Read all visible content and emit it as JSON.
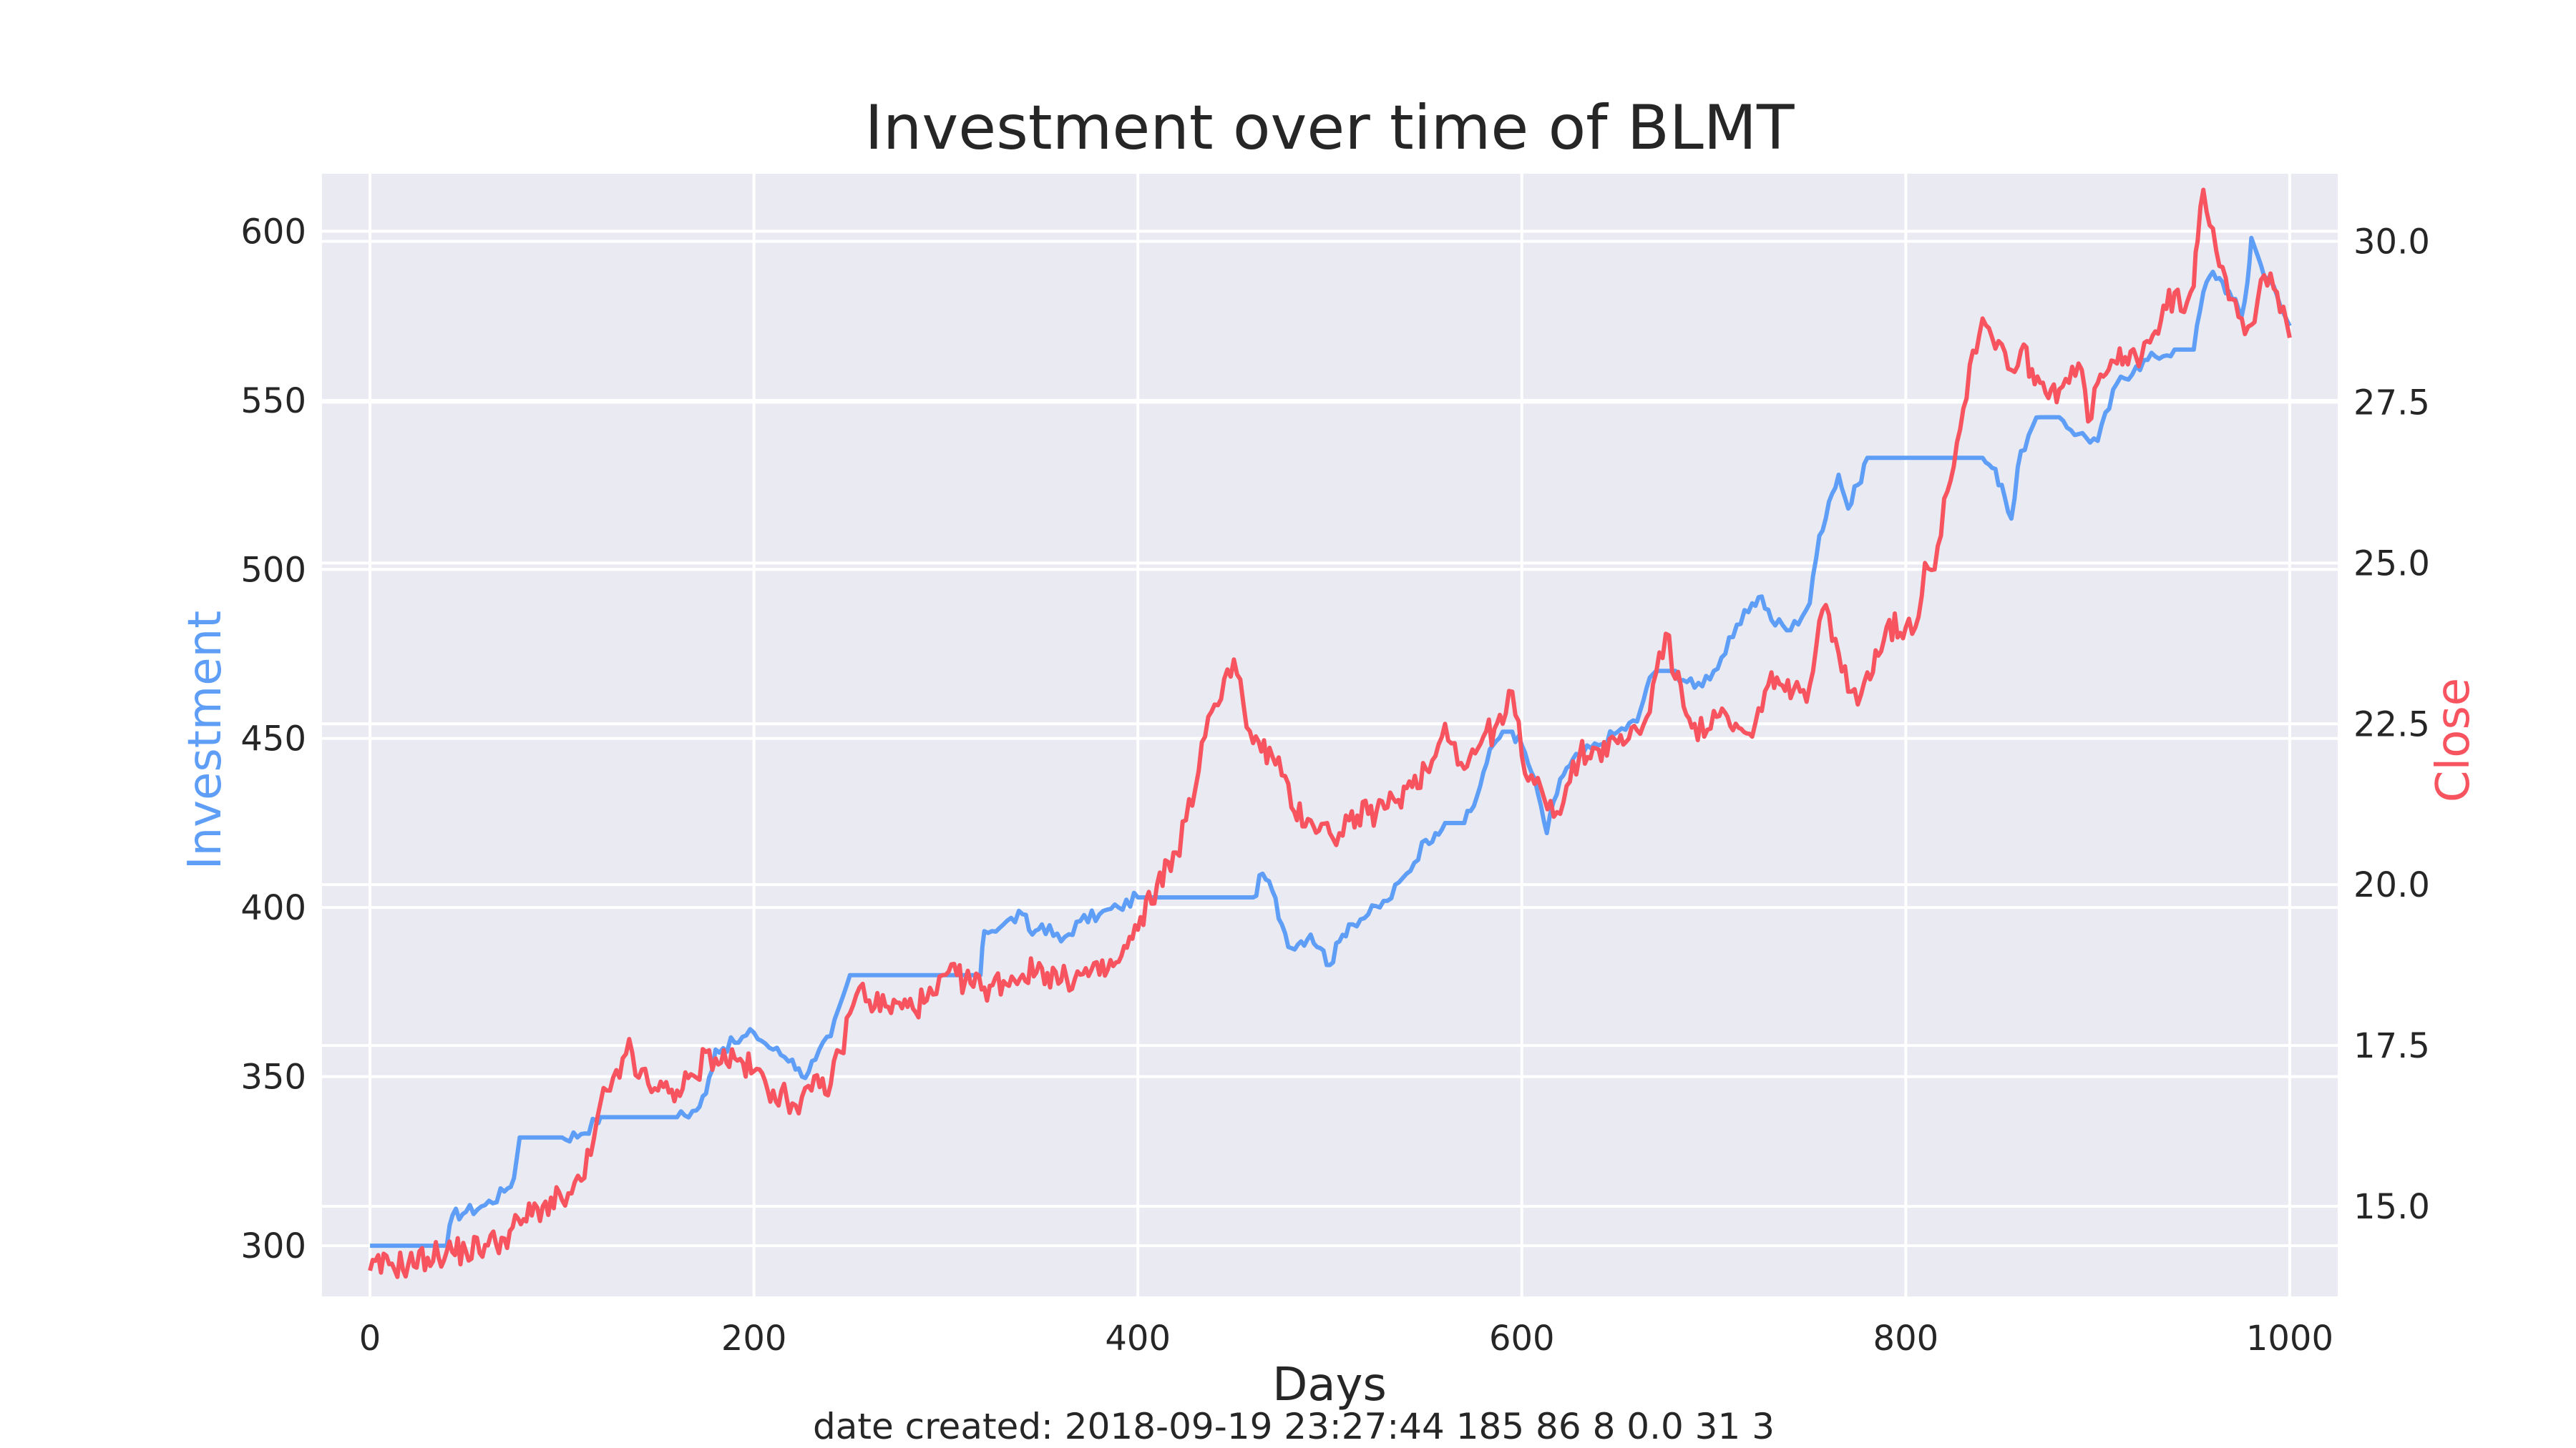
{
  "chart_data": {
    "type": "line",
    "title": "Investment over time of BLMT",
    "xlabel": "Days",
    "ylabel_left": "Investment",
    "ylabel_right": "Close",
    "footer": "date created: 2018-09-19 23:27:44 185 86 8 0.0 31 3",
    "xlim": [
      -25,
      1025
    ],
    "ylim_left": [
      285,
      617
    ],
    "ylim_right": [
      13.6,
      31.05
    ],
    "x_ticks": [
      0,
      200,
      400,
      600,
      800,
      1000
    ],
    "x_tick_labels": [
      "0",
      "200",
      "400",
      "600",
      "800",
      "1000"
    ],
    "y_left_ticks": [
      300,
      350,
      400,
      450,
      500,
      550,
      600
    ],
    "y_left_tick_labels": [
      "300",
      "350",
      "400",
      "450",
      "500",
      "550",
      "600"
    ],
    "y_right_ticks": [
      15.0,
      17.5,
      20.0,
      22.5,
      25.0,
      27.5,
      30.0
    ],
    "y_right_tick_labels": [
      "15.0",
      "17.5",
      "20.0",
      "22.5",
      "25.0",
      "27.5",
      "30.0"
    ],
    "grid": true,
    "colors": {
      "background": "#eaeaf2",
      "grid": "#ffffff",
      "investment": "#5f9ef7",
      "close": "#f7545f",
      "text": "#262626"
    },
    "series": [
      {
        "name": "Investment",
        "axis": "left",
        "x": [
          0,
          10,
          20,
          30,
          40,
          43,
          50,
          60,
          70,
          75,
          78,
          90,
          100,
          110,
          118,
          120,
          140,
          160,
          170,
          175,
          180,
          190,
          200,
          210,
          220,
          225,
          232,
          240,
          250,
          255,
          260,
          270,
          280,
          290,
          300,
          310,
          318,
          320,
          330,
          340,
          345,
          350,
          360,
          370,
          380,
          390,
          400,
          420,
          440,
          455,
          460,
          465,
          470,
          475,
          480,
          485,
          490,
          495,
          500,
          505,
          510,
          520,
          530,
          540,
          550,
          555,
          560,
          565,
          570,
          575,
          580,
          585,
          590,
          595,
          600,
          605,
          610,
          613,
          620,
          625,
          630,
          640,
          650,
          660,
          665,
          670,
          680,
          690,
          700,
          710,
          720,
          725,
          730,
          740,
          750,
          755,
          760,
          765,
          770,
          775,
          780,
          800,
          820,
          840,
          845,
          850,
          855,
          860,
          870,
          880,
          890,
          900,
          910,
          920,
          930,
          940,
          945,
          950,
          955,
          960,
          965,
          970,
          975,
          978,
          980,
          985,
          990,
          995,
          1000
        ],
        "values": [
          300,
          300,
          300,
          300,
          300,
          309,
          310,
          312,
          316,
          320,
          332,
          332,
          332,
          333,
          337,
          338,
          338,
          338,
          340,
          345,
          358,
          360,
          363,
          358,
          355,
          350,
          355,
          362,
          380,
          380,
          380,
          380,
          380,
          380,
          380,
          380,
          380,
          393,
          395,
          398,
          392,
          395,
          390,
          396,
          398,
          400,
          403,
          403,
          403,
          403,
          403,
          410,
          405,
          395,
          388,
          390,
          392,
          388,
          383,
          390,
          395,
          398,
          402,
          410,
          420,
          422,
          425,
          425,
          425,
          430,
          440,
          448,
          452,
          452,
          448,
          440,
          430,
          422,
          438,
          442,
          445,
          448,
          452,
          455,
          465,
          470,
          470,
          465,
          470,
          480,
          490,
          492,
          485,
          482,
          490,
          510,
          520,
          528,
          518,
          525,
          533,
          533,
          533,
          533,
          530,
          525,
          515,
          535,
          545,
          545,
          540,
          538,
          555,
          560,
          563,
          565,
          565,
          565,
          582,
          588,
          585,
          580,
          575,
          585,
          598,
          590,
          585,
          578,
          572
        ]
      },
      {
        "name": "Close",
        "axis": "right",
        "x": [
          0,
          10,
          20,
          30,
          40,
          50,
          60,
          70,
          80,
          90,
          100,
          105,
          110,
          115,
          120,
          125,
          130,
          135,
          140,
          145,
          150,
          160,
          170,
          175,
          180,
          190,
          200,
          210,
          220,
          225,
          230,
          240,
          245,
          250,
          255,
          260,
          270,
          280,
          290,
          295,
          300,
          310,
          320,
          330,
          340,
          350,
          360,
          370,
          380,
          390,
          400,
          410,
          420,
          425,
          430,
          435,
          440,
          445,
          450,
          455,
          460,
          470,
          475,
          480,
          490,
          500,
          505,
          510,
          520,
          530,
          540,
          550,
          555,
          560,
          565,
          570,
          580,
          590,
          595,
          600,
          605,
          610,
          615,
          620,
          625,
          630,
          640,
          650,
          660,
          665,
          670,
          675,
          680,
          690,
          695,
          700,
          710,
          720,
          725,
          730,
          740,
          745,
          750,
          755,
          760,
          765,
          770,
          775,
          780,
          790,
          800,
          805,
          810,
          815,
          820,
          825,
          830,
          835,
          840,
          845,
          850,
          855,
          860,
          870,
          880,
          885,
          890,
          895,
          900,
          910,
          920,
          930,
          940,
          945,
          950,
          952,
          955,
          960,
          965,
          970,
          975,
          980,
          985,
          990,
          995,
          1000
        ],
        "values": [
          14.0,
          14.1,
          14.1,
          14.2,
          14.3,
          14.3,
          14.4,
          14.5,
          14.8,
          15.0,
          15.1,
          15.2,
          15.4,
          15.8,
          16.6,
          16.8,
          17.0,
          17.6,
          17.0,
          16.9,
          16.8,
          16.8,
          17.0,
          17.4,
          17.3,
          17.3,
          17.1,
          16.8,
          16.6,
          16.7,
          16.8,
          16.9,
          17.4,
          18.0,
          18.4,
          18.2,
          18.1,
          18.1,
          18.2,
          18.3,
          18.6,
          18.5,
          18.4,
          18.5,
          18.6,
          18.7,
          18.5,
          18.6,
          18.6,
          18.8,
          19.3,
          20.0,
          20.5,
          21.0,
          21.5,
          22.3,
          22.8,
          23.2,
          23.5,
          22.8,
          22.2,
          22.0,
          21.7,
          21.2,
          21.0,
          20.8,
          20.8,
          21.0,
          21.1,
          21.2,
          21.5,
          21.8,
          22.0,
          22.5,
          22.2,
          21.8,
          22.3,
          22.5,
          23.0,
          22.0,
          21.7,
          21.5,
          21.3,
          21.1,
          21.6,
          22.0,
          22.1,
          22.2,
          22.4,
          22.6,
          23.3,
          23.9,
          23.2,
          22.5,
          22.3,
          22.7,
          22.4,
          22.3,
          22.7,
          23.3,
          22.9,
          23.0,
          23.1,
          24.1,
          24.2,
          23.6,
          23.0,
          22.8,
          23.3,
          24.0,
          24.0,
          24.0,
          25.0,
          24.9,
          26.0,
          26.5,
          27.4,
          28.3,
          28.8,
          28.5,
          28.4,
          28.0,
          28.3,
          27.8,
          27.7,
          27.8,
          28.1,
          27.2,
          27.8,
          28.1,
          28.2,
          28.6,
          29.2,
          28.9,
          29.3,
          30.0,
          30.8,
          30.2,
          29.6,
          29.1,
          28.8,
          28.7,
          29.4,
          29.5,
          28.9,
          28.5
        ]
      }
    ]
  }
}
